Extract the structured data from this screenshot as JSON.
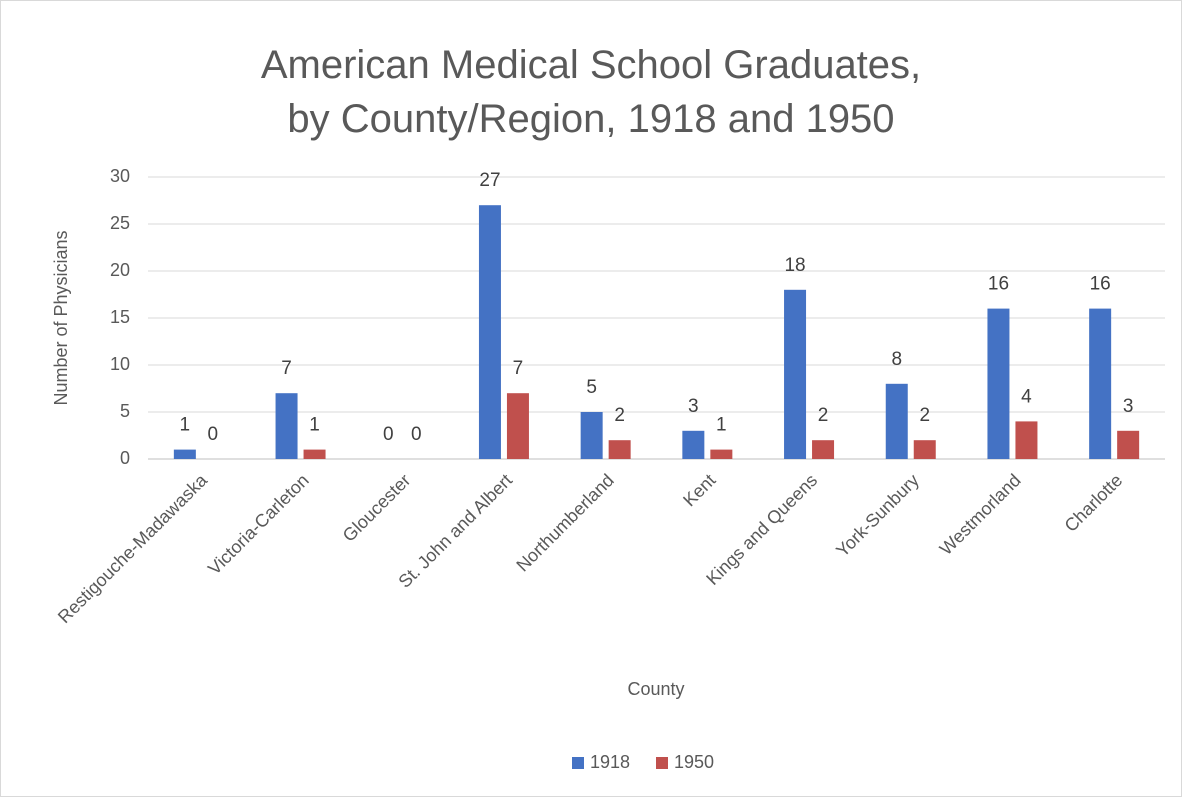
{
  "chart_data": {
    "type": "bar",
    "title": "American Medical School Graduates,\nby County/Region, 1918 and 1950",
    "x_label": "County",
    "y_label": "Number of Physicians",
    "categories": [
      "Restigouche-Madawaska",
      "Victoria-Carleton",
      "Gloucester",
      "St. John and Albert",
      "Northumberland",
      "Kent",
      "Kings and Queens",
      "York-Sunbury",
      "Westmorland",
      "Charlotte"
    ],
    "series": [
      {
        "name": "1918",
        "color": "#4472c4",
        "values": [
          1,
          7,
          0,
          27,
          5,
          3,
          18,
          8,
          16,
          16
        ]
      },
      {
        "name": "1950",
        "color": "#c0504d",
        "values": [
          0,
          1,
          0,
          7,
          2,
          1,
          2,
          2,
          4,
          3
        ]
      }
    ],
    "ylim": [
      0,
      30
    ],
    "yticks": [
      0,
      5,
      10,
      15,
      20,
      25,
      30
    ],
    "grid": true,
    "legend": "bottom"
  }
}
